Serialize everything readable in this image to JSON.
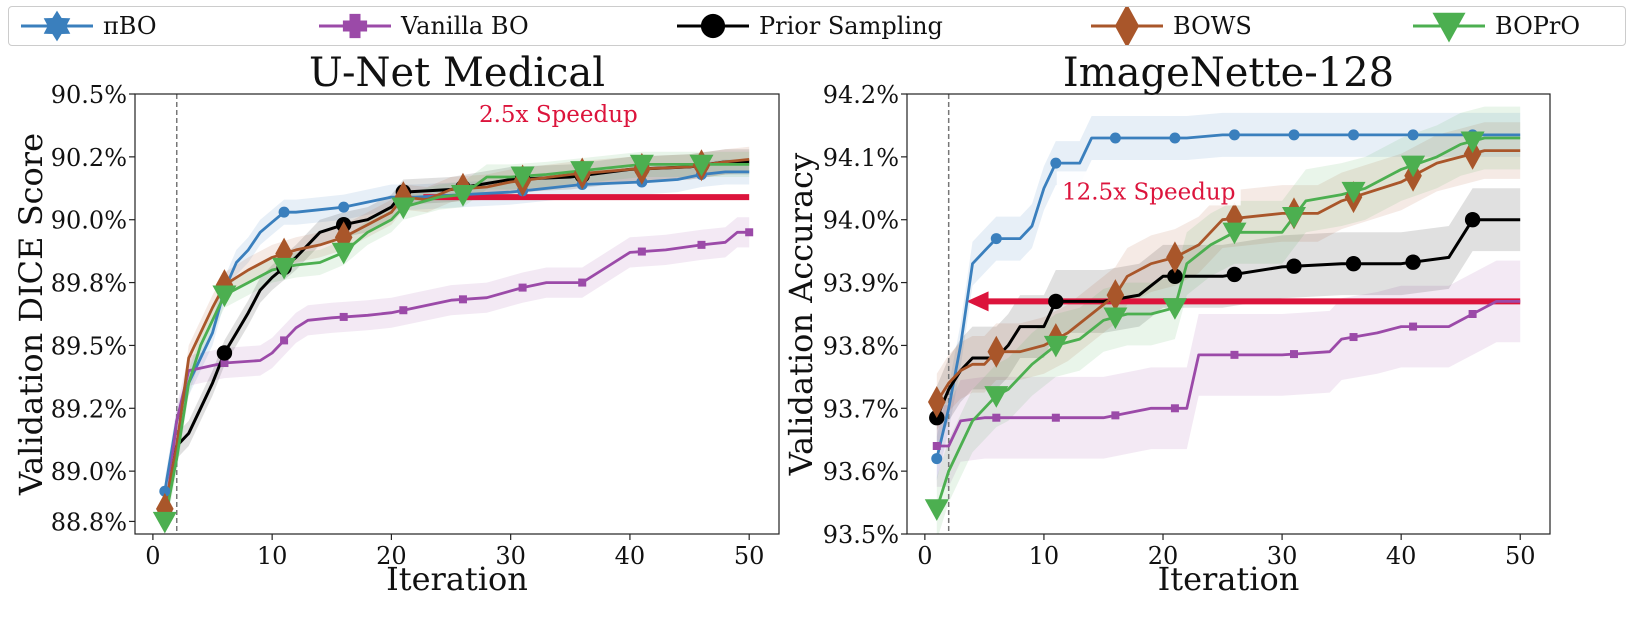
{
  "legend": [
    {
      "label": "πBO",
      "color": "#3a7fbd",
      "marker": "star"
    },
    {
      "label": "Vanilla BO",
      "color": "#9b4aa8",
      "marker": "plus"
    },
    {
      "label": "Prior Sampling",
      "color": "#000000",
      "marker": "circle"
    },
    {
      "label": "BOWS",
      "color": "#a9562a",
      "marker": "diamond"
    },
    {
      "label": "BOPrO",
      "color": "#4caf50",
      "marker": "triangle"
    }
  ],
  "speedup_color": "#dc143c",
  "chart_data": [
    {
      "type": "line",
      "title": "U-Net Medical",
      "xlabel": "Iteration",
      "ylabel": "Validation DICE Score",
      "xlim": [
        -1.5,
        52.5
      ],
      "ylim": [
        88.75,
        90.5
      ],
      "xticks": [
        0,
        10,
        20,
        30,
        40,
        50
      ],
      "xtick_labels": [
        "0",
        "10",
        "20",
        "30",
        "40",
        "50"
      ],
      "yticks": [
        88.8,
        89.0,
        89.25,
        89.5,
        89.75,
        90.0,
        90.25,
        90.5
      ],
      "ytick_labels": [
        "88.8%",
        "89.0%",
        "89.2%",
        "89.5%",
        "89.8%",
        "90.0%",
        "90.2%",
        "90.5%"
      ],
      "vline_x": 2,
      "annotation": {
        "text": "2.5x Speedup",
        "x": 34,
        "y": 90.42
      },
      "arrow": {
        "x_from": 50,
        "x_to": 21,
        "y": 90.09
      },
      "series": [
        {
          "name": "πBO",
          "x": [
            1,
            2,
            3,
            4,
            5,
            6,
            7,
            8,
            9,
            10,
            11,
            12,
            14,
            16,
            18,
            20,
            22,
            26,
            30,
            36,
            41,
            44,
            46,
            48,
            50
          ],
          "y": [
            88.92,
            89.2,
            89.35,
            89.45,
            89.55,
            89.72,
            89.83,
            89.88,
            89.95,
            89.99,
            90.03,
            90.03,
            90.04,
            90.05,
            90.07,
            90.09,
            90.09,
            90.1,
            90.11,
            90.14,
            90.15,
            90.16,
            90.18,
            90.19,
            90.19
          ],
          "band": 0.05,
          "markers_x": [
            1,
            6,
            11,
            16,
            21,
            26,
            31,
            36,
            41,
            46
          ]
        },
        {
          "name": "Vanilla BO",
          "x": [
            1,
            2,
            3,
            4,
            5,
            6,
            9,
            10,
            12,
            13,
            15,
            18,
            20,
            22,
            25,
            28,
            31,
            33,
            36,
            38,
            40,
            43,
            46,
            48,
            49,
            50
          ],
          "y": [
            88.8,
            89.2,
            89.4,
            89.41,
            89.42,
            89.43,
            89.44,
            89.47,
            89.57,
            89.6,
            89.61,
            89.62,
            89.63,
            89.65,
            89.68,
            89.69,
            89.73,
            89.75,
            89.75,
            89.81,
            89.87,
            89.88,
            89.9,
            89.91,
            89.95,
            89.95
          ],
          "band": 0.06,
          "markers_x": [
            1,
            6,
            11,
            16,
            21,
            26,
            31,
            36,
            41,
            46,
            50
          ]
        },
        {
          "name": "Prior Sampling",
          "x": [
            1,
            2,
            3,
            4,
            5,
            6,
            7,
            8,
            9,
            10,
            12,
            14,
            16,
            18,
            20,
            21,
            25,
            30,
            35,
            40,
            45,
            48,
            50
          ],
          "y": [
            88.83,
            89.1,
            89.15,
            89.25,
            89.35,
            89.47,
            89.55,
            89.63,
            89.72,
            89.77,
            89.85,
            89.95,
            89.98,
            90.0,
            90.05,
            90.11,
            90.12,
            90.16,
            90.17,
            90.2,
            90.21,
            90.23,
            90.23
          ],
          "band": 0.05,
          "markers_x": [
            1,
            6,
            11,
            16,
            21,
            26,
            31,
            36,
            41,
            46
          ]
        },
        {
          "name": "BOWS",
          "x": [
            1,
            2,
            3,
            4,
            5,
            6,
            8,
            10,
            12,
            14,
            16,
            18,
            20,
            21,
            23,
            25,
            28,
            30,
            35,
            40,
            45,
            48,
            50
          ],
          "y": [
            88.85,
            89.1,
            89.45,
            89.55,
            89.65,
            89.74,
            89.8,
            89.85,
            89.88,
            89.9,
            89.93,
            89.98,
            90.03,
            90.09,
            90.08,
            90.12,
            90.13,
            90.15,
            90.18,
            90.2,
            90.21,
            90.23,
            90.24
          ],
          "band": 0.05,
          "markers_x": [
            1,
            6,
            11,
            16,
            21,
            26,
            31,
            36,
            41,
            46
          ]
        },
        {
          "name": "BOPrO",
          "x": [
            1,
            2,
            3,
            4,
            5,
            6,
            8,
            10,
            12,
            14,
            16,
            18,
            20,
            21,
            24,
            26,
            28,
            30,
            33,
            37,
            41,
            45,
            48,
            50
          ],
          "y": [
            88.8,
            89.05,
            89.35,
            89.5,
            89.6,
            89.7,
            89.75,
            89.8,
            89.82,
            89.83,
            89.87,
            89.95,
            90.0,
            90.05,
            90.09,
            90.1,
            90.17,
            90.17,
            90.18,
            90.2,
            90.22,
            90.22,
            90.22,
            90.22
          ],
          "band": 0.05,
          "markers_x": [
            1,
            6,
            11,
            16,
            21,
            26,
            31,
            36,
            41,
            46
          ]
        }
      ]
    },
    {
      "type": "line",
      "title": "ImageNette-128",
      "xlabel": "Iteration",
      "ylabel": "Validation Accuracy",
      "xlim": [
        -1.5,
        52.5
      ],
      "ylim": [
        93.5,
        94.2
      ],
      "xticks": [
        0,
        10,
        20,
        30,
        40,
        50
      ],
      "xtick_labels": [
        "0",
        "10",
        "20",
        "30",
        "40",
        "50"
      ],
      "yticks": [
        93.5,
        93.6,
        93.7,
        93.8,
        93.9,
        94.0,
        94.1,
        94.2
      ],
      "ytick_labels": [
        "93.5%",
        "93.6%",
        "93.7%",
        "93.8%",
        "93.9%",
        "94.0%",
        "94.1%",
        "94.2%"
      ],
      "vline_x": 2,
      "annotation": {
        "text": "12.5x Speedup",
        "x": 18.8,
        "y": 94.045
      },
      "arrow": {
        "x_from": 50,
        "x_to": 3.5,
        "y": 93.87
      },
      "series": [
        {
          "name": "πBO",
          "x": [
            1,
            2,
            3,
            4,
            5,
            6,
            8,
            9,
            10,
            11,
            12,
            13,
            14,
            16,
            20,
            22,
            25,
            30,
            35,
            40,
            45,
            48,
            50
          ],
          "y": [
            93.62,
            93.7,
            93.8,
            93.93,
            93.95,
            93.97,
            93.97,
            93.99,
            94.05,
            94.09,
            94.09,
            94.09,
            94.13,
            94.13,
            94.13,
            94.13,
            94.135,
            94.135,
            94.135,
            94.135,
            94.135,
            94.135,
            94.135
          ],
          "band": 0.035,
          "markers_x": [
            1,
            6,
            11,
            16,
            21,
            26,
            31,
            36,
            41,
            46
          ]
        },
        {
          "name": "Vanilla BO",
          "x": [
            1,
            2,
            3,
            5,
            6,
            10,
            15,
            19,
            20,
            22,
            23,
            25,
            30,
            34,
            35,
            38,
            40,
            44,
            47,
            48,
            50
          ],
          "y": [
            93.64,
            93.64,
            93.68,
            93.685,
            93.685,
            93.685,
            93.685,
            93.7,
            93.7,
            93.7,
            93.785,
            93.785,
            93.785,
            93.79,
            93.81,
            93.82,
            93.83,
            93.83,
            93.86,
            93.87,
            93.87
          ],
          "band": 0.065,
          "markers_x": [
            1,
            6,
            11,
            16,
            21,
            26,
            31,
            36,
            41,
            46
          ]
        },
        {
          "name": "Prior Sampling",
          "x": [
            1,
            2,
            3,
            4,
            5,
            6,
            7,
            8,
            10,
            11,
            15,
            18,
            20,
            21,
            25,
            30,
            35,
            40,
            44,
            45,
            46,
            50
          ],
          "y": [
            93.685,
            93.73,
            93.76,
            93.78,
            93.78,
            93.78,
            93.8,
            93.83,
            93.83,
            93.87,
            93.87,
            93.88,
            93.91,
            93.91,
            93.91,
            93.925,
            93.93,
            93.93,
            93.94,
            93.97,
            94.0,
            94.0
          ],
          "band": 0.05,
          "markers_x": [
            1,
            11,
            21,
            26,
            31,
            36,
            41,
            46
          ]
        },
        {
          "name": "BOWS",
          "x": [
            1,
            2,
            3,
            4,
            5,
            6,
            7,
            8,
            10,
            12,
            14,
            16,
            17,
            19,
            21,
            23,
            25,
            30,
            33,
            35,
            40,
            43,
            45,
            47,
            50
          ],
          "y": [
            93.71,
            93.74,
            93.76,
            93.77,
            93.77,
            93.79,
            93.79,
            93.79,
            93.8,
            93.82,
            93.85,
            93.88,
            93.91,
            93.93,
            93.94,
            93.96,
            94.0,
            94.01,
            94.01,
            94.03,
            94.06,
            94.09,
            94.1,
            94.11,
            94.11
          ],
          "band": 0.045,
          "markers_x": [
            1,
            6,
            11,
            16,
            21,
            26,
            31,
            36,
            41,
            46
          ]
        },
        {
          "name": "BOPrO",
          "x": [
            1,
            2,
            3,
            4,
            5,
            6,
            7,
            9,
            11,
            13,
            15,
            17,
            19,
            21,
            22,
            24,
            26,
            30,
            32,
            35,
            37,
            40,
            43,
            45,
            47,
            50
          ],
          "y": [
            93.54,
            93.6,
            93.64,
            93.68,
            93.7,
            93.72,
            93.73,
            93.77,
            93.8,
            93.81,
            93.84,
            93.85,
            93.85,
            93.86,
            93.93,
            93.96,
            93.98,
            93.98,
            94.03,
            94.04,
            94.05,
            94.08,
            94.1,
            94.12,
            94.13,
            94.13
          ],
          "band": 0.05,
          "markers_x": [
            1,
            6,
            11,
            16,
            21,
            26,
            31,
            36,
            41,
            46
          ]
        }
      ]
    }
  ]
}
